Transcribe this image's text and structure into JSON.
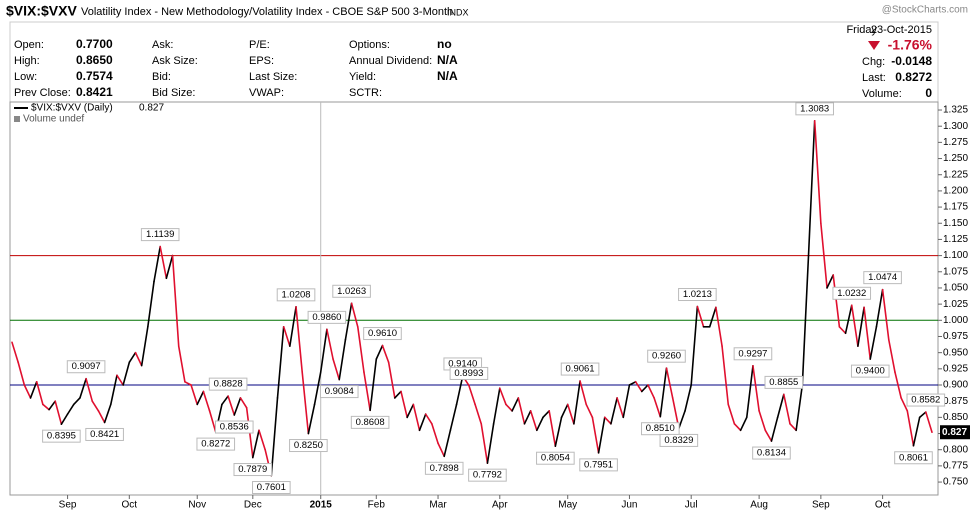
{
  "header": {
    "symbol": "$VIX:$VXV",
    "description": "Volatility Index - New Methodology/Volatility Index - CBOE S&P 500 3-Month",
    "exchange": "INDX",
    "watermark": "@StockCharts.com",
    "day": "Friday",
    "date": "23-Oct-2015",
    "change_pct": "-1.76%"
  },
  "quote": {
    "rows": [
      [
        {
          "label": "Open:",
          "value": "0.7700"
        },
        {
          "label": "Ask:"
        },
        {
          "label": "P/E:"
        },
        {
          "label": "Options:",
          "value": "no"
        }
      ],
      [
        {
          "label": "High:",
          "value": "0.8650"
        },
        {
          "label": "Ask Size:"
        },
        {
          "label": "EPS:"
        },
        {
          "label": "Annual Dividend:",
          "value": "N/A"
        }
      ],
      [
        {
          "label": "Low:",
          "value": "0.7574"
        },
        {
          "label": "Bid:"
        },
        {
          "label": "Last Size:"
        },
        {
          "label": "Yield:",
          "value": "N/A"
        }
      ],
      [
        {
          "label": "Prev Close:",
          "value": "0.8421"
        },
        {
          "label": "Bid Size:"
        },
        {
          "label": "VWAP:"
        },
        {
          "label": "SCTR:"
        }
      ]
    ],
    "summary": [
      {
        "label": "Chg:",
        "value": "-0.0148"
      },
      {
        "label": "Last:",
        "value": "0.8272"
      },
      {
        "label": "Volume:",
        "value": "0"
      }
    ]
  },
  "chart_data": {
    "type": "line",
    "volume_label": "Volume undef",
    "categories": [
      null,
      null,
      null,
      null,
      null,
      null,
      null,
      null,
      null,
      "Sep",
      null,
      null,
      null,
      null,
      null,
      null,
      null,
      null,
      null,
      "Oct",
      null,
      null,
      null,
      null,
      null,
      null,
      null,
      null,
      null,
      null,
      "Nov",
      null,
      null,
      null,
      null,
      null,
      null,
      null,
      null,
      "Dec",
      null,
      null,
      null,
      null,
      null,
      null,
      null,
      null,
      null,
      null,
      "2015",
      null,
      null,
      null,
      null,
      null,
      null,
      null,
      null,
      "Feb",
      null,
      null,
      null,
      null,
      null,
      null,
      null,
      null,
      null,
      "Mar",
      null,
      null,
      null,
      null,
      null,
      null,
      null,
      null,
      null,
      "Apr",
      null,
      null,
      null,
      null,
      null,
      null,
      null,
      null,
      null,
      null,
      "May",
      null,
      null,
      null,
      null,
      null,
      null,
      null,
      null,
      null,
      "Jun",
      null,
      null,
      null,
      null,
      null,
      null,
      null,
      null,
      null,
      "Jul",
      null,
      null,
      null,
      null,
      null,
      null,
      null,
      null,
      null,
      null,
      "Aug",
      null,
      null,
      null,
      null,
      null,
      null,
      null,
      null,
      null,
      "Sep",
      null,
      null,
      null,
      null,
      null,
      null,
      null,
      null,
      null,
      "Oct",
      null,
      null,
      null,
      null,
      null,
      null,
      null,
      null
    ],
    "series": [
      {
        "name": "$VIX:$VXV (Daily)",
        "up_color": "#000000",
        "down_color": "#e0102f",
        "values": [
          0.966,
          0.935,
          0.9,
          0.88,
          0.905,
          0.87,
          0.862,
          0.875,
          0.8395,
          0.855,
          0.87,
          0.88,
          0.9097,
          0.875,
          0.86,
          0.8421,
          0.87,
          0.915,
          0.9,
          0.935,
          0.95,
          0.93,
          0.99,
          1.06,
          1.1139,
          1.065,
          1.1,
          0.96,
          0.905,
          0.9,
          0.87,
          0.89,
          0.86,
          0.8272,
          0.87,
          0.8828,
          0.8536,
          0.88,
          0.865,
          0.7879,
          0.83,
          0.8,
          0.7601,
          0.88,
          0.99,
          0.96,
          1.0208,
          0.92,
          0.825,
          0.87,
          0.92,
          0.986,
          0.94,
          0.9084,
          0.97,
          1.0263,
          0.99,
          0.92,
          0.8608,
          0.94,
          0.961,
          0.935,
          0.88,
          0.89,
          0.85,
          0.87,
          0.83,
          0.855,
          0.84,
          0.81,
          0.7898,
          0.83,
          0.87,
          0.914,
          0.8993,
          0.87,
          0.84,
          0.7792,
          0.84,
          0.895,
          0.87,
          0.86,
          0.88,
          0.84,
          0.86,
          0.83,
          0.85,
          0.86,
          0.8054,
          0.85,
          0.87,
          0.84,
          0.9061,
          0.87,
          0.85,
          0.7951,
          0.85,
          0.84,
          0.88,
          0.85,
          0.9,
          0.905,
          0.89,
          0.9,
          0.88,
          0.851,
          0.926,
          0.88,
          0.8329,
          0.86,
          0.9,
          1.0213,
          0.99,
          0.99,
          1.02,
          0.96,
          0.87,
          0.84,
          0.83,
          0.85,
          0.9297,
          0.86,
          0.83,
          0.8134,
          0.85,
          0.8855,
          0.84,
          0.83,
          0.9,
          1.1,
          1.3083,
          1.15,
          1.05,
          1.07,
          0.99,
          0.98,
          1.0232,
          0.96,
          1.02,
          0.94,
          0.99,
          1.0474,
          0.97,
          0.92,
          0.88,
          0.86,
          0.8061,
          0.85,
          0.8582,
          0.827
        ],
        "value_labels": [
          null,
          null,
          null,
          null,
          null,
          null,
          null,
          null,
          "0.8395",
          null,
          null,
          null,
          "0.9097",
          null,
          null,
          "0.8421",
          null,
          null,
          null,
          null,
          null,
          null,
          null,
          null,
          "1.1139",
          null,
          null,
          null,
          null,
          null,
          null,
          null,
          null,
          "0.8272",
          null,
          "0.8828",
          "0.8536",
          null,
          null,
          "0.7879",
          null,
          null,
          "0.7601",
          null,
          null,
          null,
          "1.0208",
          null,
          "0.8250",
          null,
          null,
          "0.9860",
          null,
          "0.9084",
          null,
          "1.0263",
          null,
          null,
          "0.8608",
          null,
          "0.9610",
          null,
          null,
          null,
          null,
          null,
          null,
          null,
          null,
          null,
          "0.7898",
          null,
          null,
          "0.9140",
          "0.8993",
          null,
          null,
          "0.7792",
          null,
          null,
          null,
          null,
          null,
          null,
          null,
          null,
          null,
          null,
          "0.8054",
          null,
          null,
          null,
          "0.9061",
          null,
          null,
          "0.7951",
          null,
          null,
          null,
          null,
          null,
          null,
          null,
          null,
          null,
          "0.8510",
          "0.9260",
          null,
          "0.8329",
          null,
          null,
          "1.0213",
          null,
          null,
          null,
          null,
          null,
          null,
          null,
          null,
          "0.9297",
          null,
          null,
          "0.8134",
          null,
          "0.8855",
          null,
          null,
          null,
          null,
          "1.3083",
          null,
          null,
          null,
          null,
          null,
          "1.0232",
          null,
          null,
          "0.9400",
          null,
          "1.0474",
          null,
          null,
          null,
          null,
          "0.8061",
          null,
          "0.8582",
          null
        ]
      }
    ],
    "ylim": [
      0.73,
      1.3374
    ],
    "yticks": [
      {
        "value": 0.75,
        "label": "0.750"
      },
      0.775,
      {
        "value": 0.8,
        "label": "0.800"
      },
      0.825,
      {
        "value": 0.85,
        "label": "0.850"
      },
      0.875,
      {
        "value": 0.9,
        "label": "0.900"
      },
      0.925,
      {
        "value": 0.95,
        "label": "0.950"
      },
      0.975,
      {
        "value": 1,
        "label": "1.000"
      },
      1.025,
      {
        "value": 1.05,
        "label": "1.050"
      },
      1.075,
      {
        "value": 1.1,
        "label": "1.100"
      },
      1.125,
      {
        "value": 1.15,
        "label": "1.150"
      },
      1.175,
      {
        "value": 1.2,
        "label": "1.200"
      },
      1.225,
      {
        "value": 1.25,
        "label": "1.250"
      },
      1.275,
      {
        "value": 1.3,
        "label": "1.300"
      },
      1.325
    ],
    "hlines": [
      {
        "value": 1.1,
        "color": "#c00000"
      },
      {
        "value": 1,
        "color": "#007000"
      },
      {
        "value": 0.9,
        "color": "#000080"
      }
    ],
    "grid": false
  }
}
